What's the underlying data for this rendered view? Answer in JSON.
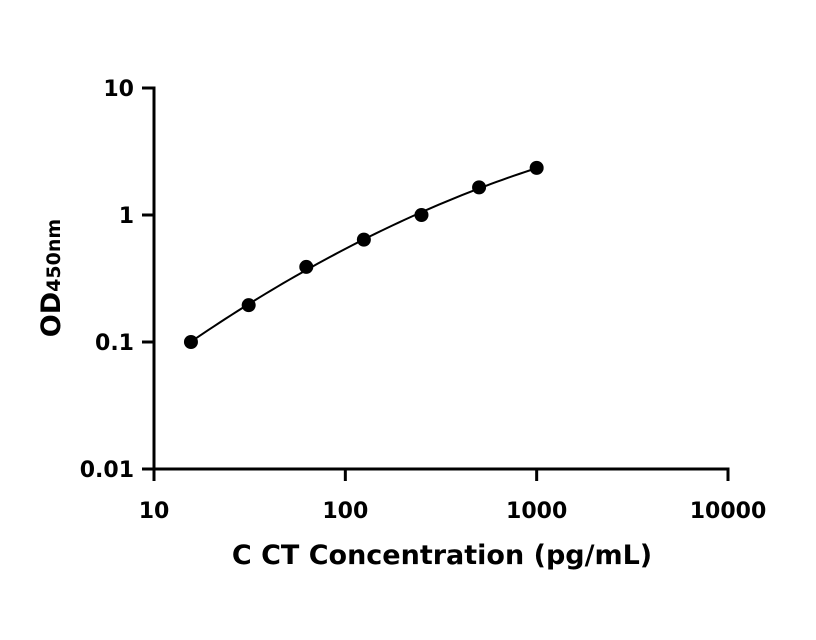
{
  "chart_data": {
    "type": "scatter",
    "title": "",
    "xlabel": "C CT Concentration (pg/mL)",
    "ylabel_main": "OD",
    "ylabel_sub": "450nm",
    "x_scale": "log",
    "y_scale": "log",
    "xlim": [
      10,
      10000
    ],
    "ylim": [
      0.01,
      10
    ],
    "x_ticks": [
      10,
      100,
      1000,
      10000
    ],
    "x_tick_labels": [
      "10",
      "100",
      "1000",
      "10000"
    ],
    "y_ticks": [
      0.01,
      0.1,
      1,
      10
    ],
    "y_tick_labels": [
      "0.01",
      "0.1",
      "1",
      "10"
    ],
    "grid": false,
    "series": [
      {
        "x": [
          15.6,
          31.25,
          62.5,
          125,
          250,
          500,
          1000
        ],
        "y": [
          0.1,
          0.195,
          0.39,
          0.64,
          1.0,
          1.65,
          2.35
        ],
        "marker": "circle",
        "color": "#000000",
        "fit_curve": true
      }
    ]
  }
}
